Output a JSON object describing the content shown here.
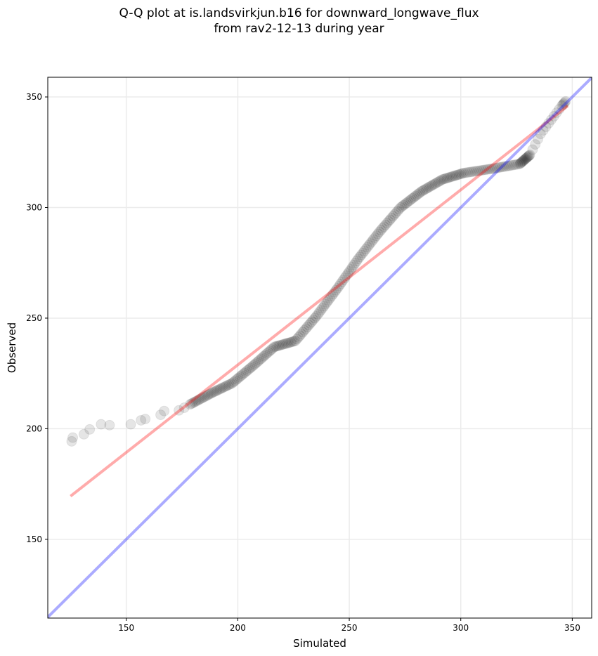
{
  "chart_data": {
    "type": "scatter",
    "title_line1": "Q-Q plot at is.landsvirkjun.b16 for downward_longwave_flux",
    "title_line2": "from rav2-12-13 during year",
    "xlabel": "Simulated",
    "ylabel": "Observed",
    "xlim": [
      114.8,
      358.7
    ],
    "ylim": [
      114.4,
      358.9
    ],
    "xticks": [
      150,
      200,
      250,
      300,
      350
    ],
    "yticks": [
      150,
      200,
      250,
      300,
      350
    ],
    "grid": true,
    "points": [
      [
        125.5,
        194.3
      ],
      [
        126,
        196
      ],
      [
        131,
        197.5
      ],
      [
        133.6,
        199.7
      ],
      [
        138.7,
        202
      ],
      [
        142.5,
        201.6
      ],
      [
        152,
        202
      ],
      [
        156.6,
        203.8
      ],
      [
        158.5,
        204.4
      ],
      [
        165.4,
        206.3
      ],
      [
        167,
        208
      ],
      [
        173.6,
        208.3
      ],
      [
        176,
        209.5
      ],
      [
        178.6,
        211
      ],
      [
        188,
        216
      ],
      [
        197.5,
        220.6
      ],
      [
        207,
        228.6
      ],
      [
        216.4,
        237
      ],
      [
        225.8,
        239.7
      ],
      [
        235.2,
        250.8
      ],
      [
        244.7,
        263.5
      ],
      [
        254,
        276.8
      ],
      [
        263.5,
        289
      ],
      [
        273,
        300
      ],
      [
        282.4,
        307.3
      ],
      [
        291.8,
        312.7
      ],
      [
        301.3,
        315.6
      ],
      [
        313.8,
        317.5
      ],
      [
        326.4,
        319.7
      ],
      [
        331,
        323.8
      ],
      [
        335.8,
        333.3
      ],
      [
        340.6,
        339.7
      ],
      [
        345.3,
        346
      ],
      [
        347,
        348
      ]
    ],
    "dense_from_index": 13,
    "fit_line": {
      "x": [
        125,
        348
      ],
      "y": [
        169.5,
        346
      ],
      "color": "#ff0000"
    },
    "identity_line": {
      "color": "#0000ff"
    },
    "marker_color": "#000000"
  }
}
